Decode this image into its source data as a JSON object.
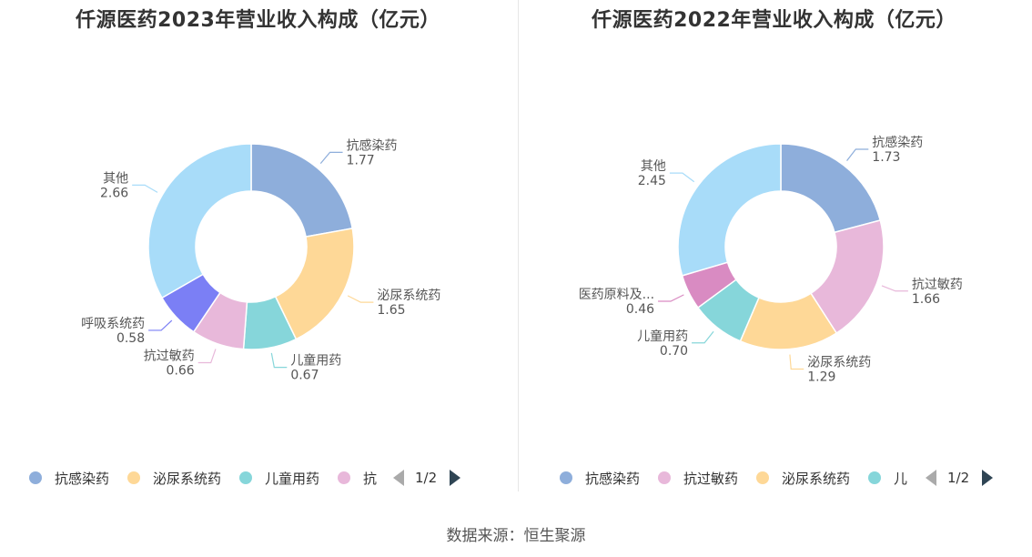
{
  "source": "数据来源：恒生聚源",
  "chart_data": [
    {
      "type": "pie",
      "title": "仟源医药2023年营业收入构成（亿元）",
      "slices": [
        {
          "name": "抗感染药",
          "value": 1.77,
          "label_name": "抗感染药",
          "label_value": "1.77",
          "color": "#8eaedb"
        },
        {
          "name": "泌尿系统药",
          "value": 1.65,
          "label_name": "泌尿系统药",
          "label_value": "1.65",
          "color": "#fed897"
        },
        {
          "name": "儿童用药",
          "value": 0.67,
          "label_name": "儿童用药",
          "label_value": "0.67",
          "color": "#86d6da"
        },
        {
          "name": "抗过敏药",
          "value": 0.66,
          "label_name": "抗过敏药",
          "label_value": "0.66",
          "color": "#e8b8da"
        },
        {
          "name": "呼吸系统药",
          "value": 0.58,
          "label_name": "呼吸系统药",
          "label_value": "0.58",
          "color": "#7b7ff5"
        },
        {
          "name": "其他",
          "value": 2.66,
          "label_name": "其他",
          "label_value": "2.66",
          "color": "#a8dcf9"
        }
      ],
      "legend": {
        "items": [
          "抗感染药",
          "泌尿系统药",
          "儿童用药",
          "抗"
        ],
        "page": "1/2"
      }
    },
    {
      "type": "pie",
      "title": "仟源医药2022年营业收入构成（亿元）",
      "slices": [
        {
          "name": "抗感染药",
          "value": 1.73,
          "label_name": "抗感染药",
          "label_value": "1.73",
          "color": "#8eaedb"
        },
        {
          "name": "抗过敏药",
          "value": 1.66,
          "label_name": "抗过敏药",
          "label_value": "1.66",
          "color": "#e8b8da"
        },
        {
          "name": "泌尿系统药",
          "value": 1.29,
          "label_name": "泌尿系统药",
          "label_value": "1.29",
          "color": "#fed897"
        },
        {
          "name": "儿童用药",
          "value": 0.7,
          "label_name": "儿童用药",
          "label_value": "0.70",
          "color": "#86d6da"
        },
        {
          "name": "医药原料及...",
          "value": 0.46,
          "label_name": "医药原料及...",
          "label_value": "0.46",
          "color": "#d98bc2"
        },
        {
          "name": "其他",
          "value": 2.45,
          "label_name": "其他",
          "label_value": "2.45",
          "color": "#a8dcf9"
        }
      ],
      "legend": {
        "items": [
          "抗感染药",
          "抗过敏药",
          "泌尿系统药",
          "儿"
        ],
        "page": "1/2"
      }
    }
  ]
}
